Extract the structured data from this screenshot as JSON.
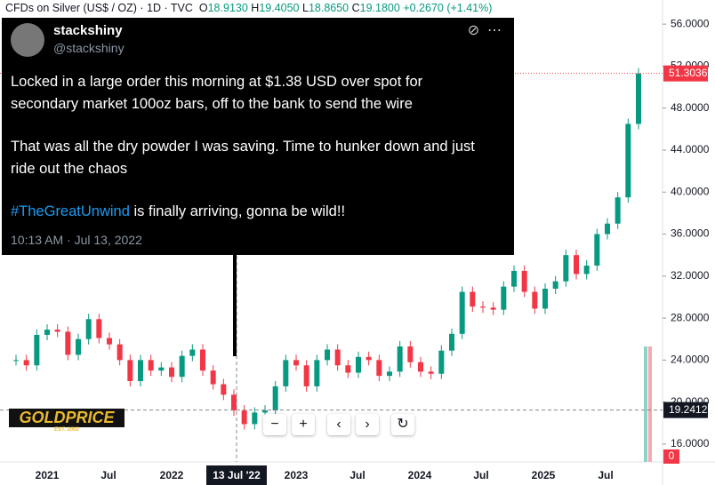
{
  "header": {
    "symbol": "CFDs on Silver (US$ / OZ) · 1D · TVC",
    "o_label": "O",
    "open": "18.9130",
    "h_label": "H",
    "high": "19.4050",
    "l_label": "L",
    "low": "18.8650",
    "c_label": "C",
    "close": "19.1800",
    "change": "+0.2670 (+1.41%)"
  },
  "tweet": {
    "name": "stackshiny",
    "handle": "@stackshiny",
    "line1": "Locked in a large order this morning at $1.38 USD over spot for",
    "line2": "secondary market 100oz bars, off to the bank to send the wire",
    "line3": "That was all the dry powder I was saving. Time to hunker down and just",
    "line4": "ride out the chaos",
    "hashtag": "#TheGreatUnwind",
    "line5": " is finally arriving, gonna be wild!!",
    "time": "10:13 AM · Jul 13, 2022"
  },
  "chart_data": {
    "type": "candlestick",
    "closes": [
      24,
      23.5,
      26.4,
      26.9,
      26.7,
      24.5,
      26,
      27.9,
      26.1,
      25.5,
      24,
      22,
      24,
      23,
      23.3,
      22.4,
      24.4,
      25,
      23,
      21.7,
      20.7,
      19.2,
      17.9,
      19,
      19.2,
      21.5,
      24,
      23.5,
      21.5,
      24,
      25,
      23.5,
      22.8,
      24.3,
      24,
      22.5,
      22.9,
      25.3,
      23.8,
      22.9,
      22.7,
      24.9,
      26.5,
      30.5,
      29.1,
      29,
      28.8,
      31,
      32.5,
      30.5,
      28.9,
      30.8,
      31.5,
      34,
      32.2,
      33,
      36,
      37,
      39.5,
      46.5,
      51.3
    ],
    "ylim": [
      14.3,
      58.3
    ],
    "yticks": [
      {
        "value": 56,
        "label": "56.0000"
      },
      {
        "value": 52,
        "label": "52.0000"
      },
      {
        "value": 48,
        "label": "48.0000"
      },
      {
        "value": 44,
        "label": "44.0000"
      },
      {
        "value": 40,
        "label": "40.0000"
      },
      {
        "value": 36,
        "label": "36.0000"
      },
      {
        "value": 32,
        "label": "32.0000"
      },
      {
        "value": 28,
        "label": "28.0000"
      },
      {
        "value": 24,
        "label": "24.0000"
      },
      {
        "value": 20,
        "label": "20.0000"
      },
      {
        "value": 16,
        "label": "16.0000"
      }
    ],
    "last_price": 51.3036,
    "cursor_price": 19.2412,
    "volume_label": "0",
    "time_labels": [
      "2021",
      "Jul",
      "2022",
      "13 Jul '22",
      "2023",
      "Jul",
      "2024",
      "Jul",
      "2025",
      "Jul"
    ],
    "up_color": "#089981",
    "down_color": "#f23645"
  },
  "logo": {
    "text": "GOLDPRICE",
    "sub": "EST. 2002"
  }
}
